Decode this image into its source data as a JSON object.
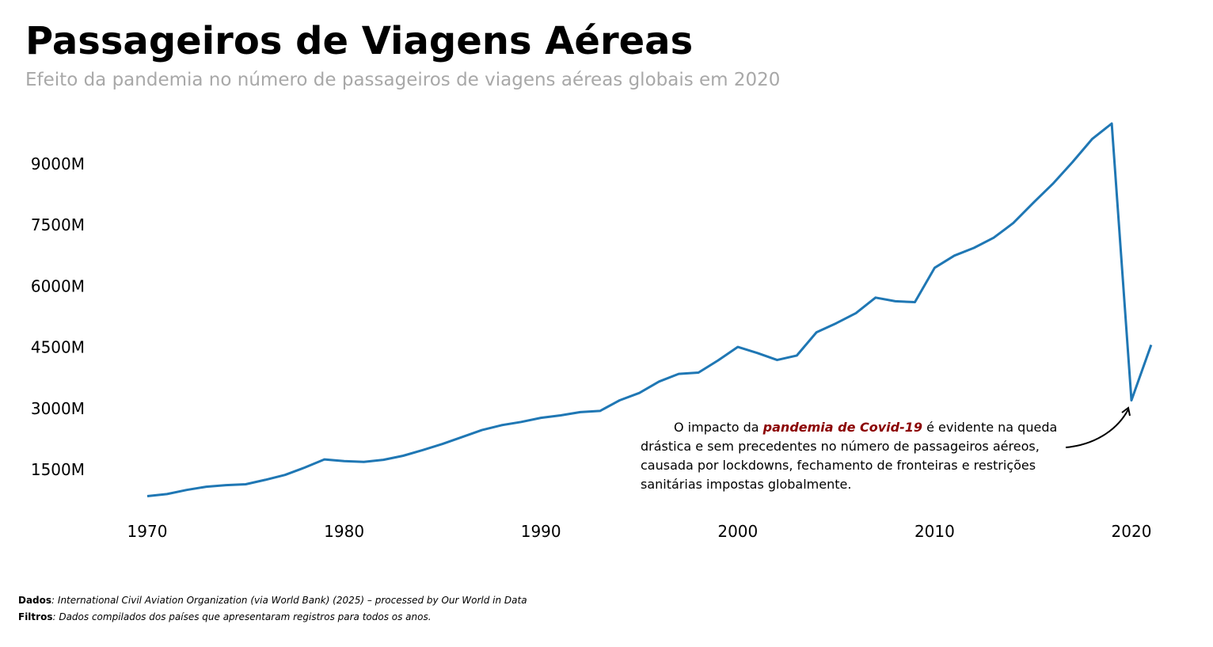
{
  "header": {
    "title": "Passageiros de Viagens Aéreas",
    "subtitle": "Efeito da pandemia no número de passageiros de viagens aéreas globais em 2020"
  },
  "annotation": {
    "prefix": "O impacto da ",
    "highlight": "pandemia de Covid-19",
    "suffix": " é evidente na queda drástica e sem precedentes no número de passageiros aéreos, causada por lockdowns, fechamento de fronteiras e restrições sanitárias impostas globalmente.",
    "highlight_color": "#8b0000"
  },
  "footer": {
    "data_label": "Dados",
    "data_text": ": International Civil Aviation Organization (via World Bank) (2025) – processed by Our World in Data",
    "filter_label": "Filtros",
    "filter_text": ": Dados compilados dos países que apresentaram registros para todos os anos."
  },
  "chart_data": {
    "type": "line",
    "title": "Passageiros de Viagens Aéreas",
    "subtitle": "Efeito da pandemia no número de passageiros de viagens aéreas globais em 2020",
    "xlabel": "",
    "ylabel": "",
    "x_ticks": [
      "1970",
      "1980",
      "1990",
      "2000",
      "2010",
      "2020"
    ],
    "y_ticks": [
      "1500M",
      "3000M",
      "4500M",
      "6000M",
      "7500M",
      "9000M"
    ],
    "y_tick_values": [
      1500,
      3000,
      4500,
      6000,
      7500,
      9000
    ],
    "grid": false,
    "color": "#1f77b4",
    "series": [
      {
        "x": [
          1970,
          1971,
          1972,
          1973,
          1974,
          1975,
          1976,
          1977,
          1978,
          1979,
          1980,
          1981,
          1982,
          1983,
          1984,
          1985,
          1986,
          1987,
          1988,
          1989,
          1990,
          1991,
          1992,
          1993,
          1994,
          1995,
          1996,
          1997,
          1998,
          1999,
          2000,
          2001,
          2002,
          2003,
          2004,
          2005,
          2006,
          2007,
          2008,
          2009,
          2010,
          2011,
          2012,
          2013,
          2014,
          2015,
          2016,
          2017,
          2018,
          2019,
          2020,
          2021
        ],
        "values": [
          850,
          900,
          1000,
          1080,
          1120,
          1140,
          1250,
          1370,
          1550,
          1750,
          1710,
          1690,
          1740,
          1840,
          1980,
          2130,
          2300,
          2470,
          2590,
          2670,
          2770,
          2830,
          2910,
          2940,
          3200,
          3380,
          3660,
          3850,
          3880,
          4180,
          4510,
          4360,
          4190,
          4300,
          4870,
          5090,
          5340,
          5720,
          5630,
          5610,
          6450,
          6750,
          6940,
          7190,
          7550,
          8040,
          8510,
          9040,
          9610,
          9990,
          3200,
          4560
        ]
      }
    ],
    "xlim": [
      1970,
      2021
    ],
    "ylim": [
      0,
      10000
    ]
  }
}
